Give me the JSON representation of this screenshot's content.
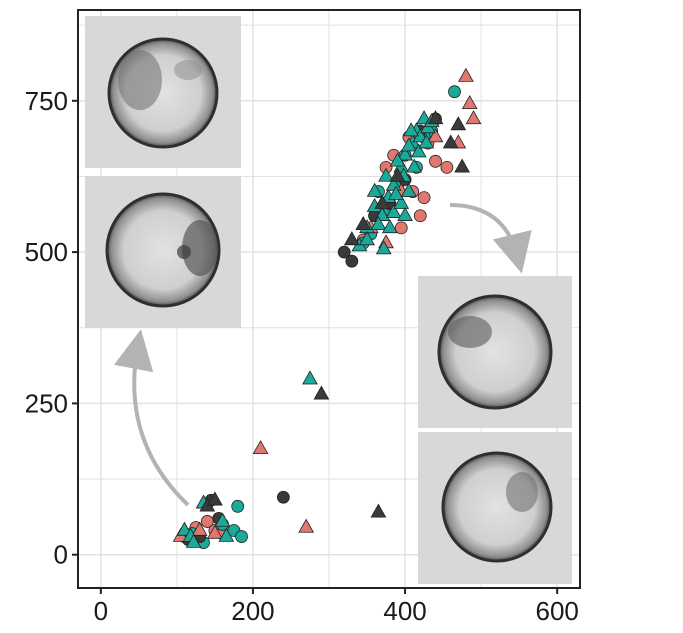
{
  "chart_data": {
    "type": "scatter",
    "title": "",
    "xlabel": "",
    "ylabel": "",
    "xlim": [
      -30,
      630
    ],
    "ylim": [
      -55,
      900
    ],
    "x_ticks": [
      0,
      200,
      400,
      600
    ],
    "y_ticks": [
      0,
      250,
      500,
      750
    ],
    "x_tick_labels": [
      "0",
      "200",
      "400",
      "600"
    ],
    "y_tick_labels": [
      "0",
      "250",
      "500",
      "750"
    ],
    "grid": true,
    "colors": {
      "salmon": "#e0786f",
      "teal": "#1ba99a",
      "dark": "#3a3a3a",
      "arrow": "#b3b3b3",
      "grid": "#e2e2e2"
    },
    "series": [
      {
        "marker": "circle",
        "color": "#e0786f",
        "points": [
          [
            110,
            30
          ],
          [
            125,
            45
          ],
          [
            140,
            55
          ],
          [
            150,
            40
          ],
          [
            160,
            35
          ],
          [
            375,
            640
          ],
          [
            385,
            660
          ],
          [
            398,
            620
          ],
          [
            410,
            600
          ],
          [
            425,
            590
          ],
          [
            440,
            650
          ],
          [
            455,
            640
          ],
          [
            360,
            560
          ],
          [
            395,
            540
          ],
          [
            420,
            560
          ],
          [
            345,
            520
          ],
          [
            405,
            690
          ],
          [
            430,
            680
          ]
        ]
      },
      {
        "marker": "circle",
        "color": "#1ba99a",
        "points": [
          [
            120,
            35
          ],
          [
            135,
            20
          ],
          [
            160,
            50
          ],
          [
            175,
            40
          ],
          [
            180,
            80
          ],
          [
            185,
            30
          ],
          [
            465,
            765
          ],
          [
            345,
            515
          ],
          [
            365,
            600
          ],
          [
            390,
            610
          ],
          [
            415,
            640
          ],
          [
            435,
            700
          ],
          [
            355,
            530
          ],
          [
            380,
            570
          ],
          [
            400,
            660
          ],
          [
            425,
            690
          ]
        ]
      },
      {
        "marker": "circle",
        "color": "#3a3a3a",
        "points": [
          [
            115,
            25
          ],
          [
            130,
            30
          ],
          [
            145,
            90
          ],
          [
            155,
            60
          ],
          [
            240,
            95
          ],
          [
            320,
            500
          ],
          [
            330,
            485
          ],
          [
            360,
            560
          ],
          [
            380,
            580
          ],
          [
            420,
            700
          ],
          [
            440,
            720
          ],
          [
            400,
            620
          ]
        ]
      },
      {
        "marker": "triangle",
        "color": "#e0786f",
        "points": [
          [
            105,
            30
          ],
          [
            130,
            40
          ],
          [
            150,
            35
          ],
          [
            210,
            175
          ],
          [
            270,
            45
          ],
          [
            480,
            790
          ],
          [
            485,
            745
          ],
          [
            490,
            720
          ],
          [
            470,
            680
          ],
          [
            440,
            690
          ],
          [
            375,
            515
          ],
          [
            355,
            540
          ],
          [
            395,
            600
          ]
        ]
      },
      {
        "marker": "triangle",
        "color": "#1ba99a",
        "points": [
          [
            110,
            40
          ],
          [
            118,
            30
          ],
          [
            122,
            20
          ],
          [
            135,
            85
          ],
          [
            160,
            55
          ],
          [
            165,
            30
          ],
          [
            275,
            290
          ],
          [
            340,
            510
          ],
          [
            350,
            540
          ],
          [
            360,
            575
          ],
          [
            370,
            560
          ],
          [
            378,
            590
          ],
          [
            385,
            610
          ],
          [
            395,
            640
          ],
          [
            400,
            660
          ],
          [
            405,
            600
          ],
          [
            410,
            680
          ],
          [
            415,
            700
          ],
          [
            420,
            690
          ],
          [
            425,
            720
          ],
          [
            430,
            705
          ],
          [
            385,
            565
          ],
          [
            395,
            580
          ],
          [
            360,
            600
          ],
          [
            375,
            625
          ],
          [
            390,
            650
          ],
          [
            405,
            675
          ],
          [
            350,
            520
          ],
          [
            365,
            545
          ],
          [
            380,
            540
          ],
          [
            400,
            560
          ],
          [
            412,
            640
          ],
          [
            418,
            665
          ],
          [
            428,
            680
          ],
          [
            372,
            505
          ],
          [
            388,
            595
          ],
          [
            398,
            625
          ],
          [
            408,
            700
          ],
          [
            435,
            715
          ]
        ]
      },
      {
        "marker": "triangle",
        "color": "#3a3a3a",
        "points": [
          [
            140,
            80
          ],
          [
            150,
            90
          ],
          [
            290,
            265
          ],
          [
            365,
            70
          ],
          [
            460,
            680
          ],
          [
            475,
            640
          ],
          [
            470,
            710
          ],
          [
            440,
            720
          ],
          [
            330,
            520
          ],
          [
            345,
            545
          ],
          [
            370,
            580
          ],
          [
            390,
            625
          ]
        ]
      }
    ]
  }
}
